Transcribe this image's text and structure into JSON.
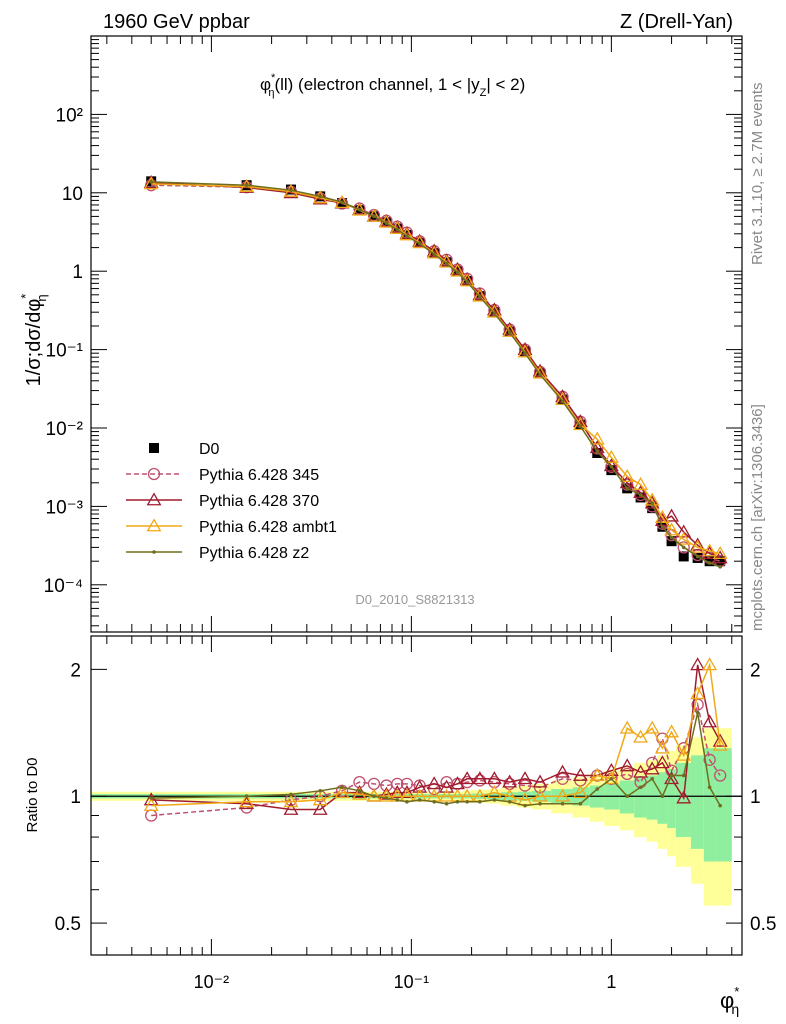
{
  "header": {
    "left": "1960 GeV ppbar",
    "right": "Z (Drell-Yan)"
  },
  "side_text": {
    "rivet": "Rivet 3.1.10, ≥ 2.7M events",
    "mcplots": "mcplots.cern.ch [arXiv:1306.3436]"
  },
  "chart_data": [
    {
      "type": "scatter",
      "title": "φ*η(ll) (electron channel, 1 < |yZ| < 2)",
      "xlabel": "φ*η",
      "ylabel": "1/σ;dσ/dφ*η",
      "xscale": "log",
      "yscale": "log",
      "xlim": [
        0.0025,
        4.5
      ],
      "ylim": [
        2.5e-05,
        1000
      ],
      "x_ticks": [
        "10⁻²",
        "10⁻¹",
        "1"
      ],
      "y_ticks": [
        "10⁻⁴",
        "10⁻³",
        "10⁻²",
        "10⁻¹",
        "1",
        "10",
        "10²"
      ],
      "watermark": "D0_2010_S8821313",
      "legend_position": "lower-left",
      "x": [
        0.005,
        0.015,
        0.025,
        0.035,
        0.045,
        0.055,
        0.065,
        0.075,
        0.085,
        0.095,
        0.11,
        0.13,
        0.15,
        0.17,
        0.19,
        0.22,
        0.26,
        0.31,
        0.37,
        0.44,
        0.57,
        0.7,
        0.85,
        1.0,
        1.2,
        1.4,
        1.6,
        1.8,
        2.0,
        2.3,
        2.7,
        3.1,
        3.5
      ],
      "series": [
        {
          "name": "D0",
          "color": "#000000",
          "marker": "filled-square",
          "values": [
            14.0,
            12.5,
            11.0,
            9.0,
            7.4,
            6.0,
            5.0,
            4.2,
            3.5,
            2.9,
            2.3,
            1.7,
            1.3,
            1.0,
            0.75,
            0.48,
            0.3,
            0.17,
            0.095,
            0.05,
            0.023,
            0.011,
            0.0048,
            0.0029,
            0.0017,
            0.0013,
            0.00095,
            0.00055,
            0.00036,
            0.00023,
            0.00022,
            0.0002,
            0.0002
          ]
        },
        {
          "name": "Pythia 6.428 345",
          "color": "#c0506e",
          "marker": "open-circle",
          "dashed": true,
          "values": [
            12.5,
            11.8,
            10.3,
            8.5,
            7.3,
            6.3,
            5.2,
            4.4,
            3.7,
            3.1,
            2.4,
            1.8,
            1.4,
            1.05,
            0.8,
            0.52,
            0.32,
            0.18,
            0.1,
            0.052,
            0.025,
            0.012,
            0.0055,
            0.0032,
            0.0019,
            0.0014,
            0.001,
            0.0006,
            0.00043,
            0.0003,
            0.00024,
            0.00022,
            0.0002
          ]
        },
        {
          "name": "Pythia 6.428 370",
          "color": "#a01c2e",
          "marker": "open-triangle",
          "values": [
            13.5,
            11.7,
            10.0,
            8.3,
            7.4,
            6.1,
            5.0,
            4.3,
            3.6,
            3.0,
            2.4,
            1.8,
            1.35,
            1.05,
            0.78,
            0.5,
            0.32,
            0.18,
            0.1,
            0.053,
            0.025,
            0.012,
            0.0056,
            0.0033,
            0.002,
            0.0015,
            0.0011,
            0.00066,
            0.00075,
            0.00047,
            0.00032,
            0.00025,
            0.00022
          ]
        },
        {
          "name": "Pythia 6.428 ambt1",
          "color": "#f0a818",
          "marker": "open-triangle",
          "values": [
            13.0,
            12.0,
            10.4,
            8.6,
            7.5,
            6.0,
            5.0,
            4.2,
            3.5,
            2.9,
            2.3,
            1.7,
            1.3,
            1.0,
            0.75,
            0.48,
            0.3,
            0.17,
            0.093,
            0.05,
            0.023,
            0.011,
            0.0072,
            0.0042,
            0.0024,
            0.0019,
            0.0012,
            0.00072,
            0.0005,
            0.00038,
            0.0003,
            0.00027,
            0.00025
          ]
        },
        {
          "name": "Pythia 6.428 z2",
          "color": "#6e6e1e",
          "marker": "dot",
          "values": [
            13.8,
            12.5,
            10.8,
            9.0,
            7.6,
            6.1,
            5.0,
            4.1,
            3.4,
            2.8,
            2.25,
            1.65,
            1.25,
            0.97,
            0.73,
            0.47,
            0.29,
            0.165,
            0.09,
            0.048,
            0.022,
            0.0105,
            0.005,
            0.0032,
            0.0017,
            0.0014,
            0.0011,
            0.00055,
            0.0004,
            0.0003,
            0.00023,
            0.00019,
            0.00017
          ]
        }
      ]
    },
    {
      "type": "line",
      "ylabel": "Ratio to D0",
      "xlabel": "φ*η",
      "xscale": "log",
      "yscale": "log",
      "xlim": [
        0.0025,
        4.5
      ],
      "ylim": [
        0.42,
        2.4
      ],
      "y_ticks": [
        "0.5",
        "1",
        "2"
      ],
      "x": [
        0.005,
        0.015,
        0.025,
        0.035,
        0.045,
        0.055,
        0.065,
        0.075,
        0.085,
        0.095,
        0.11,
        0.13,
        0.15,
        0.17,
        0.19,
        0.22,
        0.26,
        0.31,
        0.37,
        0.44,
        0.57,
        0.7,
        0.85,
        1.0,
        1.2,
        1.4,
        1.6,
        1.8,
        2.0,
        2.3,
        2.7,
        3.1,
        3.5
      ],
      "uncertainty_bands": {
        "edges": [
          0.0025,
          0.01,
          0.02,
          0.03,
          0.04,
          0.05,
          0.06,
          0.07,
          0.08,
          0.09,
          0.1,
          0.12,
          0.14,
          0.16,
          0.18,
          0.2,
          0.24,
          0.28,
          0.34,
          0.4,
          0.5,
          0.64,
          0.78,
          0.92,
          1.1,
          1.3,
          1.5,
          1.7,
          1.9,
          2.1,
          2.5,
          2.9,
          3.3,
          4.0
        ],
        "inner_half_width": [
          0.012,
          0.012,
          0.012,
          0.012,
          0.012,
          0.012,
          0.012,
          0.012,
          0.012,
          0.012,
          0.012,
          0.012,
          0.012,
          0.012,
          0.012,
          0.015,
          0.018,
          0.022,
          0.025,
          0.03,
          0.04,
          0.05,
          0.06,
          0.07,
          0.09,
          0.11,
          0.12,
          0.14,
          0.16,
          0.2,
          0.25,
          0.3,
          0.3
        ],
        "outer_half_width": [
          0.025,
          0.025,
          0.025,
          0.025,
          0.025,
          0.025,
          0.025,
          0.025,
          0.025,
          0.025,
          0.025,
          0.025,
          0.025,
          0.025,
          0.03,
          0.035,
          0.04,
          0.05,
          0.06,
          0.07,
          0.09,
          0.11,
          0.13,
          0.15,
          0.17,
          0.2,
          0.22,
          0.25,
          0.28,
          0.32,
          0.38,
          0.45,
          0.45
        ],
        "inner_color": "#8fef9f",
        "outer_color": "#ffff9a"
      },
      "series": [
        {
          "name": "Pythia 6.428 345",
          "color": "#c0506e",
          "marker": "open-circle",
          "dashed": true,
          "values": [
            0.9,
            0.94,
            0.98,
            1.0,
            1.03,
            1.08,
            1.07,
            1.06,
            1.07,
            1.07,
            1.06,
            1.04,
            1.08,
            1.07,
            1.08,
            1.09,
            1.08,
            1.07,
            1.06,
            1.05,
            1.1,
            1.09,
            1.12,
            1.1,
            1.13,
            1.08,
            1.2,
            1.37,
            1.15,
            1.3,
            1.65,
            1.22,
            1.12
          ]
        },
        {
          "name": "Pythia 6.428 370",
          "color": "#a01c2e",
          "marker": "open-triangle",
          "values": [
            0.98,
            0.96,
            0.93,
            0.93,
            1.02,
            1.02,
            1.0,
            1.01,
            1.02,
            1.02,
            1.05,
            1.07,
            1.05,
            1.07,
            1.1,
            1.1,
            1.1,
            1.08,
            1.1,
            1.08,
            1.14,
            1.12,
            1.12,
            1.15,
            1.18,
            1.14,
            1.16,
            1.2,
            1.1,
            0.99,
            2.05,
            1.5,
            1.35
          ]
        },
        {
          "name": "Pythia 6.428 ambt1",
          "color": "#f0a818",
          "marker": "open-triangle",
          "values": [
            0.95,
            0.97,
            0.97,
            0.98,
            1.02,
            1.01,
            1.0,
            1.0,
            1.0,
            1.0,
            1.0,
            1.0,
            1.0,
            1.0,
            1.0,
            1.0,
            1.02,
            1.0,
            0.98,
            1.0,
            1.0,
            1.02,
            1.12,
            1.1,
            1.45,
            1.38,
            1.45,
            1.3,
            1.42,
            1.25,
            1.75,
            2.05,
            1.32
          ]
        },
        {
          "name": "Pythia 6.428 z2",
          "color": "#6e6e1e",
          "marker": "dot",
          "values": [
            0.99,
            1.0,
            1.01,
            1.03,
            1.05,
            1.03,
            1.0,
            0.99,
            0.98,
            0.97,
            0.98,
            0.97,
            0.96,
            0.97,
            0.97,
            0.97,
            0.98,
            0.97,
            0.95,
            0.96,
            0.96,
            0.96,
            1.04,
            1.1,
            1.0,
            1.05,
            1.1,
            1.0,
            1.12,
            1.12,
            1.58,
            1.05,
            0.95
          ]
        }
      ]
    }
  ]
}
